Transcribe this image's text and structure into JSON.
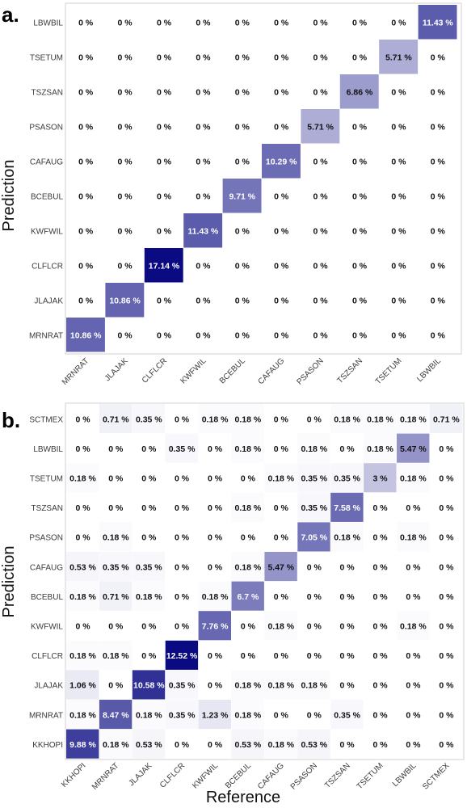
{
  "colors": {
    "low": "#ffffff",
    "high": "#0a0a82"
  },
  "chart_data": [
    {
      "type": "heatmap",
      "panel_label": "a.",
      "xlabel": "",
      "ylabel": "Prediction",
      "x_categories": [
        "MRNRAT",
        "JLAJAK",
        "CLFLCR",
        "KWFWIL",
        "BCEBUL",
        "CAFAUG",
        "PSASON",
        "TSZSAN",
        "TSETUM",
        "LBWBIL"
      ],
      "y_categories": [
        "LBWBIL",
        "TSETUM",
        "TSZSAN",
        "PSASON",
        "CAFAUG",
        "BCEBUL",
        "KWFWIL",
        "CLFLCR",
        "JLAJAK",
        "MRNRAT"
      ],
      "values": [
        [
          0,
          0,
          0,
          0,
          0,
          0,
          0,
          0,
          0,
          11.43
        ],
        [
          0,
          0,
          0,
          0,
          0,
          0,
          0,
          0,
          5.71,
          0
        ],
        [
          0,
          0,
          0,
          0,
          0,
          0,
          0,
          6.86,
          0,
          0
        ],
        [
          0,
          0,
          0,
          0,
          0,
          0,
          5.71,
          0,
          0,
          0
        ],
        [
          0,
          0,
          0,
          0,
          0,
          10.29,
          0,
          0,
          0,
          0
        ],
        [
          0,
          0,
          0,
          0,
          9.71,
          0,
          0,
          0,
          0,
          0
        ],
        [
          0,
          0,
          0,
          11.43,
          0,
          0,
          0,
          0,
          0,
          0
        ],
        [
          0,
          0,
          17.14,
          0,
          0,
          0,
          0,
          0,
          0,
          0
        ],
        [
          0,
          10.86,
          0,
          0,
          0,
          0,
          0,
          0,
          0,
          0
        ],
        [
          10.86,
          0,
          0,
          0,
          0,
          0,
          0,
          0,
          0,
          0
        ]
      ],
      "labels": [
        [
          "0 %",
          "0 %",
          "0 %",
          "0 %",
          "0 %",
          "0 %",
          "0 %",
          "0 %",
          "0 %",
          "11.43 %"
        ],
        [
          "0 %",
          "0 %",
          "0 %",
          "0 %",
          "0 %",
          "0 %",
          "0 %",
          "0 %",
          "5.71 %",
          "0 %"
        ],
        [
          "0 %",
          "0 %",
          "0 %",
          "0 %",
          "0 %",
          "0 %",
          "0 %",
          "6.86 %",
          "0 %",
          "0 %"
        ],
        [
          "0 %",
          "0 %",
          "0 %",
          "0 %",
          "0 %",
          "0 %",
          "5.71 %",
          "0 %",
          "0 %",
          "0 %"
        ],
        [
          "0 %",
          "0 %",
          "0 %",
          "0 %",
          "0 %",
          "10.29 %",
          "0 %",
          "0 %",
          "0 %",
          "0 %"
        ],
        [
          "0 %",
          "0 %",
          "0 %",
          "0 %",
          "9.71 %",
          "0 %",
          "0 %",
          "0 %",
          "0 %",
          "0 %"
        ],
        [
          "0 %",
          "0 %",
          "0 %",
          "11.43 %",
          "0 %",
          "0 %",
          "0 %",
          "0 %",
          "0 %",
          "0 %"
        ],
        [
          "0 %",
          "0 %",
          "17.14 %",
          "0 %",
          "0 %",
          "0 %",
          "0 %",
          "0 %",
          "0 %",
          "0 %"
        ],
        [
          "0 %",
          "10.86 %",
          "0 %",
          "0 %",
          "0 %",
          "0 %",
          "0 %",
          "0 %",
          "0 %",
          "0 %"
        ],
        [
          "10.86 %",
          "0 %",
          "0 %",
          "0 %",
          "0 %",
          "0 %",
          "0 %",
          "0 %",
          "0 %",
          "0 %"
        ]
      ],
      "max_value": 17.14
    },
    {
      "type": "heatmap",
      "panel_label": "b.",
      "xlabel": "Reference",
      "ylabel": "Prediction",
      "x_categories": [
        "KKHOPI",
        "MRNRAT",
        "JLAJAK",
        "CLFLCR",
        "KWFWIL",
        "BCEBUL",
        "CAFAUG",
        "PSASON",
        "TSZSAN",
        "TSETUM",
        "LBWBIL",
        "SCTMEX"
      ],
      "y_categories": [
        "SCTMEX",
        "LBWBIL",
        "TSETUM",
        "TSZSAN",
        "PSASON",
        "CAFAUG",
        "BCEBUL",
        "KWFWIL",
        "CLFLCR",
        "JLAJAK",
        "MRNRAT",
        "KKHOPI"
      ],
      "values": [
        [
          0,
          0.71,
          0.35,
          0,
          0.18,
          0.18,
          0,
          0,
          0.18,
          0.18,
          0.18,
          0.71
        ],
        [
          0,
          0,
          0,
          0.35,
          0,
          0.18,
          0,
          0.18,
          0,
          0.18,
          5.47,
          0
        ],
        [
          0.18,
          0,
          0,
          0,
          0,
          0,
          0.18,
          0.35,
          0.35,
          3,
          0.18,
          0
        ],
        [
          0,
          0,
          0,
          0,
          0,
          0.18,
          0,
          0.35,
          7.58,
          0,
          0,
          0
        ],
        [
          0,
          0.18,
          0,
          0,
          0,
          0,
          0,
          7.05,
          0.18,
          0,
          0.18,
          0
        ],
        [
          0.53,
          0.35,
          0.35,
          0,
          0,
          0.18,
          5.47,
          0,
          0,
          0,
          0,
          0
        ],
        [
          0.18,
          0.71,
          0.18,
          0,
          0.18,
          6.7,
          0,
          0,
          0,
          0,
          0,
          0
        ],
        [
          0,
          0,
          0,
          0,
          7.76,
          0,
          0.18,
          0,
          0,
          0,
          0.18,
          0
        ],
        [
          0.18,
          0.18,
          0,
          12.52,
          0,
          0,
          0,
          0,
          0,
          0,
          0,
          0
        ],
        [
          1.06,
          0,
          10.58,
          0.35,
          0,
          0.18,
          0.18,
          0.18,
          0,
          0,
          0,
          0
        ],
        [
          0.18,
          8.47,
          0.18,
          0.35,
          1.23,
          0.18,
          0,
          0,
          0.35,
          0,
          0,
          0
        ],
        [
          9.88,
          0.18,
          0.53,
          0,
          0,
          0.53,
          0.18,
          0.53,
          0,
          0,
          0,
          0
        ]
      ],
      "labels": [
        [
          "0 %",
          "0.71 %",
          "0.35 %",
          "0 %",
          "0.18 %",
          "0.18 %",
          "0 %",
          "0 %",
          "0.18 %",
          "0.18 %",
          "0.18 %",
          "0.71 %"
        ],
        [
          "0 %",
          "0 %",
          "0 %",
          "0.35 %",
          "0 %",
          "0.18 %",
          "0 %",
          "0.18 %",
          "0 %",
          "0.18 %",
          "5.47 %",
          "0 %"
        ],
        [
          "0.18 %",
          "0 %",
          "0 %",
          "0 %",
          "0 %",
          "0 %",
          "0.18 %",
          "0.35 %",
          "0.35 %",
          "3 %",
          "0.18 %",
          "0 %"
        ],
        [
          "0 %",
          "0 %",
          "0 %",
          "0 %",
          "0 %",
          "0.18 %",
          "0 %",
          "0.35 %",
          "7.58 %",
          "0 %",
          "0 %",
          "0 %"
        ],
        [
          "0 %",
          "0.18 %",
          "0 %",
          "0 %",
          "0 %",
          "0 %",
          "0 %",
          "7.05 %",
          "0.18 %",
          "0 %",
          "0.18 %",
          "0 %"
        ],
        [
          "0.53 %",
          "0.35 %",
          "0.35 %",
          "0 %",
          "0 %",
          "0.18 %",
          "5.47 %",
          "0 %",
          "0 %",
          "0 %",
          "0 %",
          "0 %"
        ],
        [
          "0.18 %",
          "0.71 %",
          "0.18 %",
          "0 %",
          "0.18 %",
          "6.7 %",
          "0 %",
          "0 %",
          "0 %",
          "0 %",
          "0 %",
          "0 %"
        ],
        [
          "0 %",
          "0 %",
          "0 %",
          "0 %",
          "7.76 %",
          "0 %",
          "0.18 %",
          "0 %",
          "0 %",
          "0 %",
          "0.18 %",
          "0 %"
        ],
        [
          "0.18 %",
          "0.18 %",
          "0 %",
          "12.52 %",
          "0 %",
          "0 %",
          "0 %",
          "0 %",
          "0 %",
          "0 %",
          "0 %",
          "0 %"
        ],
        [
          "1.06 %",
          "0 %",
          "10.58 %",
          "0.35 %",
          "0 %",
          "0.18 %",
          "0.18 %",
          "0.18 %",
          "0 %",
          "0 %",
          "0 %",
          "0 %"
        ],
        [
          "0.18 %",
          "8.47 %",
          "0.18 %",
          "0.35 %",
          "1.23 %",
          "0.18 %",
          "0 %",
          "0 %",
          "0.35 %",
          "0 %",
          "0 %",
          "0 %"
        ],
        [
          "9.88 %",
          "0.18 %",
          "0.53 %",
          "0 %",
          "0 %",
          "0.53 %",
          "0.18 %",
          "0.53 %",
          "0 %",
          "0 %",
          "0 %",
          "0 %"
        ]
      ],
      "max_value": 12.52
    }
  ]
}
